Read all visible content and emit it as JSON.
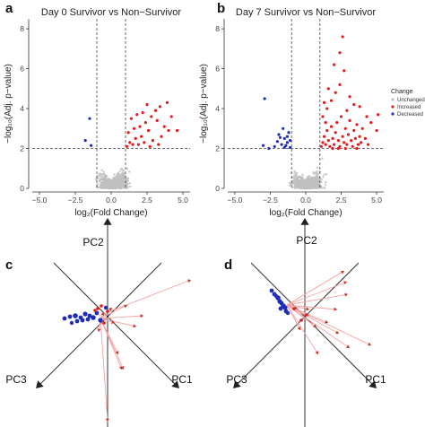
{
  "chart_data": [
    {
      "panel": "a",
      "type": "scatter",
      "title": "Day 0 Survivor vs Non−Survivor",
      "xlabel": "log₂(Fold Change)",
      "ylabel": "−log₁₀(Adj. p−value)",
      "xlim": [
        -5.5,
        5.5
      ],
      "ylim": [
        0,
        8.5
      ],
      "xticks": [
        "−5.0",
        "−2.5",
        "0.0",
        "2.5",
        "5.0"
      ],
      "xtick_values": [
        -5,
        -2.5,
        0,
        2.5,
        5
      ],
      "yticks": [
        "0",
        "2",
        "4",
        "6",
        "8"
      ],
      "ytick_values": [
        0,
        2,
        4,
        6,
        8
      ],
      "vlines": [
        -1,
        1
      ],
      "hline": 2,
      "increased_points": [
        [
          1.1,
          2.1
        ],
        [
          1.3,
          2.3
        ],
        [
          1.5,
          2.2
        ],
        [
          1.7,
          2.5
        ],
        [
          1.9,
          2.2
        ],
        [
          2.1,
          2.6
        ],
        [
          2.3,
          2.3
        ],
        [
          1.2,
          2.8
        ],
        [
          1.6,
          3.0
        ],
        [
          2.0,
          3.1
        ],
        [
          2.4,
          3.3
        ],
        [
          2.8,
          3.6
        ],
        [
          3.1,
          3.9
        ],
        [
          3.4,
          4.1
        ],
        [
          3.2,
          3.4
        ],
        [
          2.6,
          2.9
        ],
        [
          1.4,
          3.5
        ],
        [
          2.2,
          3.8
        ],
        [
          3.7,
          3.1
        ],
        [
          4.2,
          3.6
        ],
        [
          4.0,
          2.9
        ],
        [
          2.9,
          2.4
        ],
        [
          3.5,
          2.6
        ],
        [
          1.8,
          3.7
        ],
        [
          2.5,
          4.2
        ],
        [
          3.9,
          4.3
        ],
        [
          4.6,
          2.9
        ],
        [
          3.3,
          2.2
        ],
        [
          2.7,
          2.1
        ]
      ],
      "decreased_points": [
        [
          -1.4,
          2.15
        ],
        [
          -1.8,
          2.4
        ],
        [
          -1.5,
          3.5
        ]
      ],
      "unchanged_count_note": ""
    },
    {
      "panel": "b",
      "type": "scatter",
      "title": "Day 7 Survivor vs Non−Survivor",
      "xlabel": "log₂(Fold Change)",
      "ylabel": "−log₁₀(Adj. p−value)",
      "xlim": [
        -5.5,
        5.5
      ],
      "ylim": [
        0,
        8.5
      ],
      "xticks": [
        "−5.0",
        "−2.5",
        "0.0",
        "2.5",
        "5.0"
      ],
      "xtick_values": [
        -5,
        -2.5,
        0,
        2.5,
        5
      ],
      "yticks": [
        "0",
        "2",
        "4",
        "6",
        "8"
      ],
      "ytick_values": [
        0,
        2,
        4,
        6,
        8
      ],
      "vlines": [
        -1,
        1
      ],
      "hline": 2,
      "increased_points": [
        [
          1.1,
          2.1
        ],
        [
          1.2,
          2.3
        ],
        [
          1.3,
          2.6
        ],
        [
          1.4,
          2.2
        ],
        [
          1.5,
          2.9
        ],
        [
          1.6,
          2.4
        ],
        [
          1.7,
          2.1
        ],
        [
          1.8,
          3.1
        ],
        [
          1.9,
          2.5
        ],
        [
          2.0,
          2.2
        ],
        [
          2.1,
          2.8
        ],
        [
          2.2,
          3.3
        ],
        [
          2.3,
          2.4
        ],
        [
          2.4,
          2.1
        ],
        [
          2.5,
          3.6
        ],
        [
          2.6,
          2.6
        ],
        [
          2.7,
          2.3
        ],
        [
          2.8,
          3.0
        ],
        [
          2.9,
          2.2
        ],
        [
          3.0,
          2.7
        ],
        [
          3.1,
          3.4
        ],
        [
          3.2,
          2.4
        ],
        [
          3.3,
          2.1
        ],
        [
          3.4,
          2.9
        ],
        [
          3.5,
          2.5
        ],
        [
          3.6,
          3.2
        ],
        [
          3.7,
          2.2
        ],
        [
          3.8,
          2.6
        ],
        [
          3.9,
          2.3
        ],
        [
          4.0,
          3.0
        ],
        [
          4.2,
          2.5
        ],
        [
          4.4,
          2.2
        ],
        [
          1.2,
          3.6
        ],
        [
          1.5,
          4.0
        ],
        [
          1.8,
          4.4
        ],
        [
          2.1,
          4.8
        ],
        [
          2.4,
          5.2
        ],
        [
          2.7,
          5.9
        ],
        [
          2.0,
          6.2
        ],
        [
          2.4,
          6.8
        ],
        [
          2.6,
          7.6
        ],
        [
          3.1,
          4.6
        ],
        [
          3.4,
          4.2
        ],
        [
          2.9,
          3.9
        ],
        [
          1.6,
          5.0
        ],
        [
          1.3,
          4.3
        ],
        [
          3.8,
          4.1
        ],
        [
          4.3,
          3.6
        ],
        [
          4.6,
          3.3
        ],
        [
          5.0,
          2.9
        ],
        [
          5.1,
          3.7
        ],
        [
          2.3,
          2.0
        ],
        [
          1.9,
          2.0
        ],
        [
          2.8,
          2.0
        ],
        [
          1.4,
          3.3
        ],
        [
          3.6,
          2.0
        ]
      ],
      "decreased_points": [
        [
          -1.1,
          2.05
        ],
        [
          -1.3,
          2.3
        ],
        [
          -1.5,
          2.5
        ],
        [
          -1.7,
          2.2
        ],
        [
          -1.9,
          2.7
        ],
        [
          -1.2,
          2.8
        ],
        [
          -1.6,
          3.0
        ],
        [
          -2.0,
          2.35
        ],
        [
          -1.4,
          2.15
        ],
        [
          -1.8,
          2.55
        ],
        [
          -2.2,
          2.1
        ],
        [
          -1.3,
          2.6
        ],
        [
          -1.5,
          2.05
        ],
        [
          -1.1,
          2.4
        ],
        [
          -2.9,
          4.5
        ],
        [
          -3.0,
          2.15
        ],
        [
          -2.6,
          2.0
        ]
      ],
      "legend": {
        "title": "Change",
        "entries": [
          {
            "label": "Unchanged",
            "color": "#bfbfbf"
          },
          {
            "label": "Increased",
            "color": "#e41a1c"
          },
          {
            "label": "Decreased",
            "color": "#1f2eb8"
          }
        ],
        "placement": "right"
      }
    },
    {
      "panel": "c",
      "type": "scatter",
      "subtype": "3d-pca",
      "axis_labels": [
        "PC1",
        "PC2",
        "PC3"
      ]
    },
    {
      "panel": "d",
      "type": "scatter",
      "subtype": "3d-pca",
      "axis_labels": [
        "PC1",
        "PC2",
        "PC3"
      ]
    }
  ],
  "colors": {
    "unchanged": "#bfbfbf",
    "increased": "#e41a1c",
    "decreased": "#1f2eb8",
    "arrow": "#f4a3a3"
  }
}
